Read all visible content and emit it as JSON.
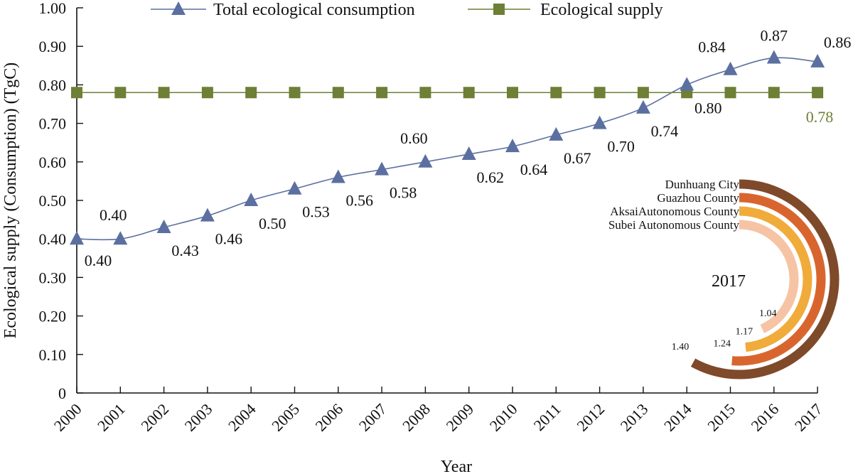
{
  "chart_data": [
    {
      "type": "line",
      "xlabel": "Year",
      "ylabel": "Ecological supply (Consumption) (TgC)",
      "ylim": [
        0,
        1.0
      ],
      "yticks": [
        "0",
        "0.10",
        "0.20",
        "0.30",
        "0.40",
        "0.50",
        "0.60",
        "0.70",
        "0.80",
        "0.90",
        "1.00"
      ],
      "categories": [
        "2000",
        "2001",
        "2002",
        "2003",
        "2004",
        "2005",
        "2006",
        "2007",
        "2008",
        "2009",
        "2010",
        "2011",
        "2012",
        "2013",
        "2014",
        "2015",
        "2016",
        "2017"
      ],
      "legend_position": "top",
      "series": [
        {
          "name": "Total ecological consumption",
          "color": "#5b6fa0",
          "marker": "triangle",
          "values": [
            0.4,
            0.4,
            0.43,
            0.46,
            0.5,
            0.53,
            0.56,
            0.58,
            0.6,
            0.62,
            0.64,
            0.67,
            0.7,
            0.74,
            0.8,
            0.84,
            0.87,
            0.86
          ],
          "labels": [
            "0.40",
            "0.40",
            "0.43",
            "0.46",
            "0.50",
            "0.53",
            "0.56",
            "0.58",
            "0.60",
            "0.62",
            "0.64",
            "0.67",
            "0.70",
            "0.74",
            "0.80",
            "0.84",
            "0.87",
            "0.86"
          ]
        },
        {
          "name": "Ecological supply",
          "color": "#6e7f36",
          "marker": "square",
          "values": [
            0.78,
            0.78,
            0.78,
            0.78,
            0.78,
            0.78,
            0.78,
            0.78,
            0.78,
            0.78,
            0.78,
            0.78,
            0.78,
            0.78,
            0.78,
            0.78,
            0.78,
            0.78
          ],
          "end_label": "0.78"
        }
      ]
    },
    {
      "type": "radial_bar",
      "title": "2017",
      "max": 1.4,
      "series": [
        {
          "name": "Dunhuang City",
          "value": 1.4,
          "label": "1.40",
          "color": "#7f4a2a"
        },
        {
          "name": "Guazhou County",
          "value": 1.24,
          "label": "1.24",
          "color": "#d9652e"
        },
        {
          "name": "AksaiAutonomous County",
          "value": 1.17,
          "label": "1.17",
          "color": "#f0ab3b"
        },
        {
          "name": "Subei Autonomous County",
          "value": 1.04,
          "label": "1.04",
          "color": "#f6c4a4"
        }
      ]
    }
  ]
}
